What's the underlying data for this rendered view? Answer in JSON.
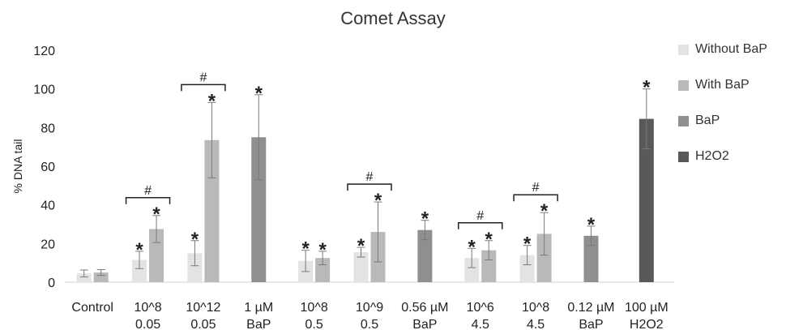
{
  "chart_data": {
    "type": "bar",
    "title": "Comet Assay",
    "ylabel": "% DNA tail",
    "xlabel": "",
    "ylim": [
      0,
      120
    ],
    "yticks": [
      0,
      20,
      40,
      60,
      80,
      100,
      120
    ],
    "grid": false,
    "legend_position": "right",
    "categories": [
      [
        "Control"
      ],
      [
        "10^8",
        "0.05"
      ],
      [
        "10^12",
        "0.05"
      ],
      [
        "1 µM",
        "BaP"
      ],
      [
        "10^8",
        "0.5"
      ],
      [
        "10^9",
        "0.5"
      ],
      [
        "0.56 µM",
        "BaP"
      ],
      [
        "10^6",
        "4.5"
      ],
      [
        "10^8",
        "4.5"
      ],
      [
        "0.12 µM",
        "BaP"
      ],
      [
        "100 µM",
        "H2O2"
      ]
    ],
    "series": [
      {
        "name": "Without BaP",
        "color": "#e3e3e3",
        "values": [
          4.5,
          11.5,
          15,
          null,
          11,
          15.5,
          null,
          12.5,
          14,
          null,
          null
        ],
        "errors": [
          1.8,
          4.5,
          6.5,
          null,
          5.5,
          2.5,
          null,
          5,
          5,
          null,
          null
        ],
        "significant": [
          false,
          true,
          true,
          false,
          true,
          true,
          false,
          true,
          true,
          false,
          false
        ]
      },
      {
        "name": "With BaP",
        "color": "#b9b9b9",
        "values": [
          5,
          27.5,
          73.5,
          null,
          12.5,
          26,
          null,
          16.5,
          25,
          null,
          null
        ],
        "errors": [
          1.5,
          7,
          19.5,
          null,
          3.5,
          15.5,
          null,
          5,
          11,
          null,
          null
        ],
        "significant": [
          false,
          true,
          true,
          false,
          true,
          true,
          false,
          true,
          true,
          false,
          false
        ]
      },
      {
        "name": "BaP",
        "color": "#8f8f8f",
        "values": [
          null,
          null,
          null,
          75,
          null,
          null,
          27,
          null,
          null,
          24,
          null
        ],
        "errors": [
          null,
          null,
          null,
          22,
          null,
          null,
          5,
          null,
          null,
          5,
          null
        ],
        "significant": [
          false,
          false,
          false,
          true,
          false,
          false,
          true,
          false,
          false,
          true,
          false
        ]
      },
      {
        "name": "H2O2",
        "color": "#595959",
        "values": [
          null,
          null,
          null,
          null,
          null,
          null,
          null,
          null,
          null,
          null,
          84.5
        ],
        "errors": [
          null,
          null,
          null,
          null,
          null,
          null,
          null,
          null,
          null,
          null,
          15.5
        ],
        "significant": [
          false,
          false,
          false,
          false,
          false,
          false,
          false,
          false,
          false,
          false,
          true
        ]
      }
    ],
    "annotations": {
      "significance_marker": "*",
      "comparison_marker": "#",
      "comparison_groups": [
        1,
        2,
        5,
        7,
        8
      ]
    }
  }
}
